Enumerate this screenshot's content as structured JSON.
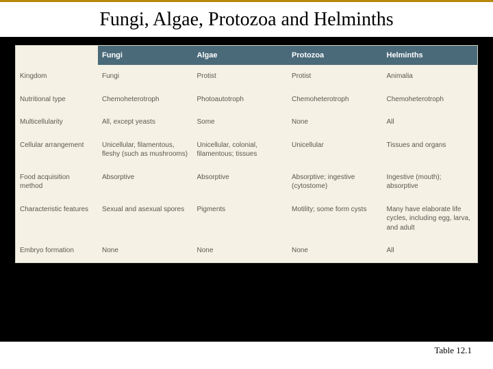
{
  "title": "Fungi, Algae, Protozoa and Helminths",
  "caption": "Table 12.1",
  "table": {
    "header_bg": "#4a6a7a",
    "header_fg": "#ffffff",
    "body_bg": "#f5f1e4",
    "body_fg": "#5a5a52",
    "font_size_header": 11,
    "font_size_body": 10,
    "columns": [
      "",
      "Fungi",
      "Algae",
      "Protozoa",
      "Helminths"
    ],
    "rows": [
      {
        "label": "Kingdom",
        "cells": [
          "Fungi",
          "Protist",
          "Protist",
          "Animalia"
        ]
      },
      {
        "label": "Nutritional type",
        "cells": [
          "Chemoheterotroph",
          "Photoautotroph",
          "Chemoheterotroph",
          "Chemoheterotroph"
        ]
      },
      {
        "label": "Multicellularity",
        "cells": [
          "All, except yeasts",
          "Some",
          "None",
          "All"
        ]
      },
      {
        "label": "Cellular arrangement",
        "cells": [
          "Unicellular, filamentous, fleshy (such as mushrooms)",
          "Unicellular, colonial, filamentous; tissues",
          "Unicellular",
          "Tissues and organs"
        ]
      },
      {
        "label": "Food acquisition method",
        "cells": [
          "Absorptive",
          "Absorptive",
          "Absorptive; ingestive (cytostome)",
          "Ingestive (mouth); absorptive"
        ]
      },
      {
        "label": "Characteristic features",
        "cells": [
          "Sexual and asexual spores",
          "Pigments",
          "Motility; some form cysts",
          "Many have elaborate life cycles, including egg, larva, and adult"
        ]
      },
      {
        "label": "Embryo formation",
        "cells": [
          "None",
          "None",
          "None",
          "All"
        ]
      }
    ]
  }
}
